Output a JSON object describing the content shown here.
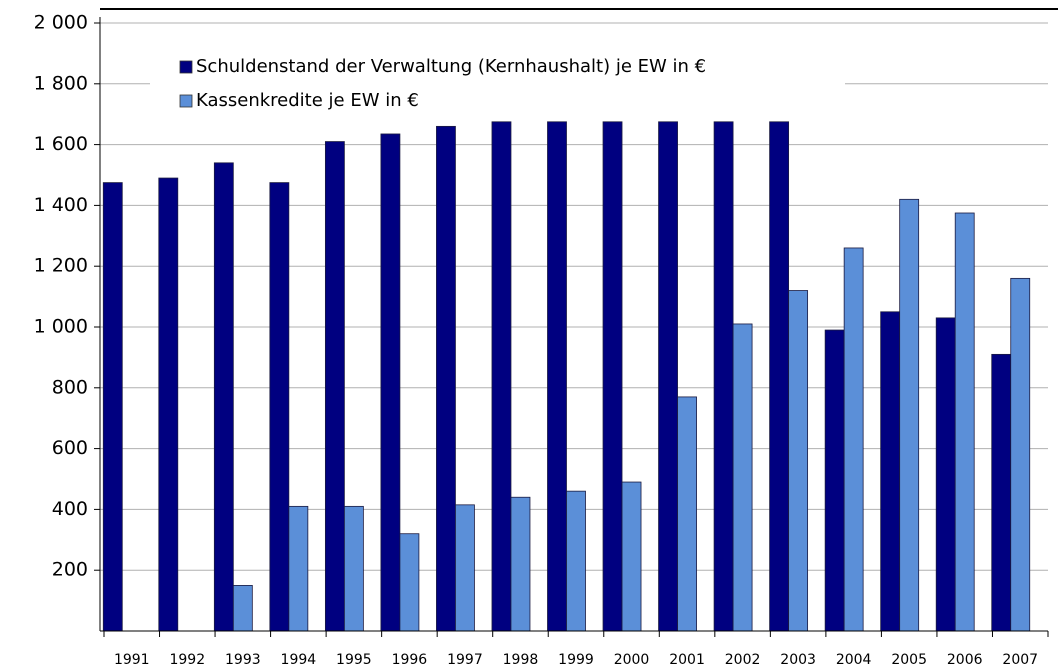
{
  "chart_data": {
    "type": "bar",
    "categories": [
      "1991",
      "1992",
      "1993",
      "1994",
      "1995",
      "1996",
      "1997",
      "1998",
      "1999",
      "2000",
      "2001",
      "2002",
      "2003",
      "2004",
      "2005",
      "2006",
      "2007"
    ],
    "series": [
      {
        "name": "Schuldenstand der Verwaltung (Kernhaushalt) je EW in €",
        "color": "#000080",
        "values": [
          1475,
          1490,
          1540,
          1475,
          1610,
          1635,
          1660,
          1675,
          1675,
          1675,
          1675,
          1675,
          1675,
          990,
          1050,
          1030,
          910
        ]
      },
      {
        "name": "Kassenkredite je EW in €",
        "color": "#5b8fd8",
        "values": [
          null,
          null,
          150,
          410,
          410,
          320,
          415,
          440,
          460,
          490,
          770,
          1010,
          1120,
          1260,
          1420,
          1375,
          1160
        ]
      }
    ],
    "ylim": [
      0,
      2000
    ],
    "yticks": [
      {
        "value": 200,
        "label": "200"
      },
      {
        "value": 400,
        "label": "400"
      },
      {
        "value": 600,
        "label": "600"
      },
      {
        "value": 800,
        "label": "800"
      },
      {
        "value": 1000,
        "label": "1 000"
      },
      {
        "value": 1200,
        "label": "1 200"
      },
      {
        "value": 1400,
        "label": "1 400"
      },
      {
        "value": 1600,
        "label": "1 600"
      },
      {
        "value": 1800,
        "label": "1 800"
      },
      {
        "value": 2000,
        "label": "2 000"
      }
    ],
    "grid": true,
    "legend": "top-left"
  }
}
